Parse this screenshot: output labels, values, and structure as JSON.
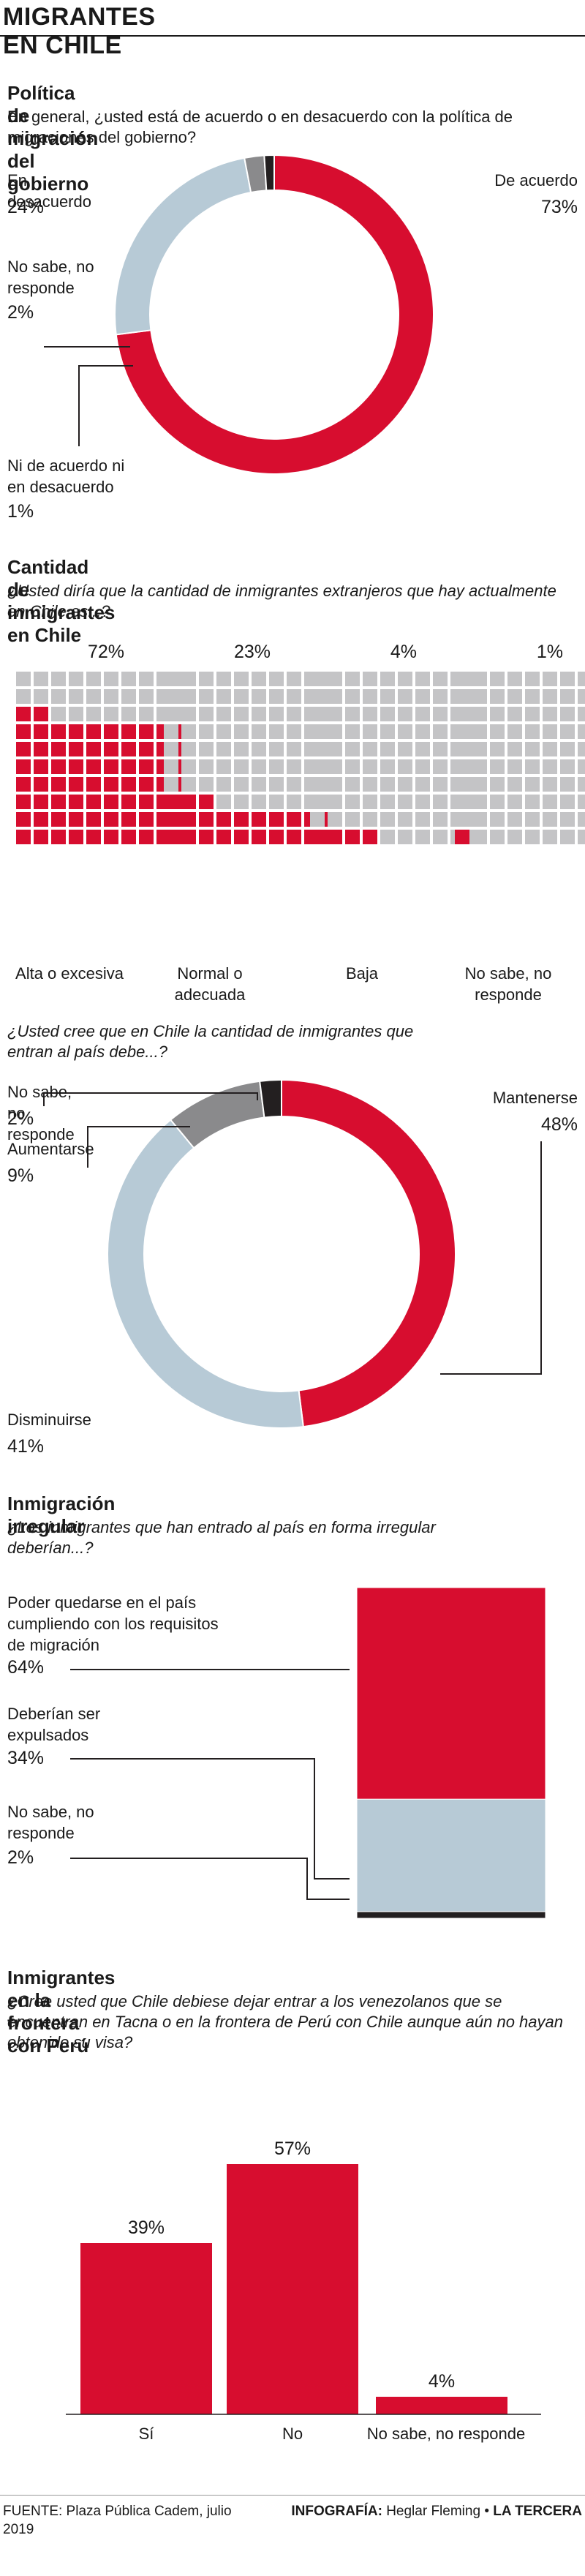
{
  "page": {
    "title": "MIGRANTES EN CHILE"
  },
  "colors": {
    "red": "#d70d2f",
    "light_blue": "#b7cad6",
    "gray": "#8a8a8c",
    "black": "#231f20",
    "square_gray": "#c4c4c6"
  },
  "sections": {
    "politica": {
      "heading": "Política de migración del gobierno",
      "question": "En general, ¿usted está de acuerdo o en desacuerdo con la política de migraciones del gobierno?"
    },
    "cantidad": {
      "heading": "Cantidad de inmigrantes en Chile",
      "question": "¿Usted diría que la cantidad de inmigrantes extranjeros que hay actualmente en Chile es...?"
    },
    "debe": {
      "question": "¿Usted cree que en Chile la cantidad de inmigrantes que entran al país debe...?"
    },
    "irregular": {
      "heading": "Inmigración irregular",
      "question": "¿Los inmigrantes que han entrado al país en forma irregular deberían...?"
    },
    "frontera": {
      "heading": "Inmigrantes en la frontera con Perú",
      "question": "¿Cree usted que Chile debiese dejar entrar a los venezolanos que se encuentran en Tacna o en la frontera de Perú con Chile aunque aún no hayan obtenido su visa?"
    }
  },
  "footer": {
    "source": "FUENTE: Plaza Pública Cadem, julio 2019",
    "credit_prefix": "INFOGRAFÍA:",
    "credit_name": "Heglar Fleming",
    "credit_sep": "•",
    "credit_brand": "LA TERCERA"
  },
  "chart_data": [
    {
      "type": "pie",
      "title": "Política de migración del gobierno",
      "donut": true,
      "labels": [
        "De acuerdo",
        "En desacuerdo",
        "No sabe, no responde",
        "Ni de acuerdo ni en desacuerdo"
      ],
      "values": [
        73,
        24,
        2,
        1
      ],
      "value_labels": [
        "73%",
        "24%",
        "2%",
        "1%"
      ],
      "colors": [
        "#d70d2f",
        "#b7cad6",
        "#8a8a8c",
        "#231f20"
      ]
    },
    {
      "type": "bar",
      "title": "Cantidad de inmigrantes en Chile",
      "style": "waffle",
      "categories": [
        "Alta o excesiva",
        "Normal o adecuada",
        "Baja",
        "No sabe, no responde"
      ],
      "values": [
        72,
        23,
        4,
        1
      ],
      "value_labels": [
        "72%",
        "23%",
        "4%",
        "1%"
      ]
    },
    {
      "type": "pie",
      "donut": true,
      "labels": [
        "Mantenerse",
        "Disminuirse",
        "Aumentarse",
        "No sabe, no responde"
      ],
      "values": [
        48,
        41,
        9,
        2
      ],
      "value_labels": [
        "48%",
        "41%",
        "9%",
        "2%"
      ],
      "colors": [
        "#d70d2f",
        "#b7cad6",
        "#8a8a8c",
        "#231f20"
      ]
    },
    {
      "type": "bar",
      "title": "Inmigración irregular",
      "style": "stacked-100",
      "categories": [
        "Poder quedarse en el país cumpliendo con los requisitos de migración",
        "Deberían ser expulsados",
        "No sabe, no responde"
      ],
      "values": [
        64,
        34,
        2
      ],
      "value_labels": [
        "64%",
        "34%",
        "2%"
      ],
      "colors": [
        "#d70d2f",
        "#b7cad6",
        "#231f20"
      ]
    },
    {
      "type": "bar",
      "title": "Inmigrantes en la frontera con Perú",
      "categories": [
        "Sí",
        "No",
        "No sabe, no responde"
      ],
      "values": [
        39,
        57,
        4
      ],
      "value_labels": [
        "39%",
        "57%",
        "4%"
      ]
    }
  ]
}
